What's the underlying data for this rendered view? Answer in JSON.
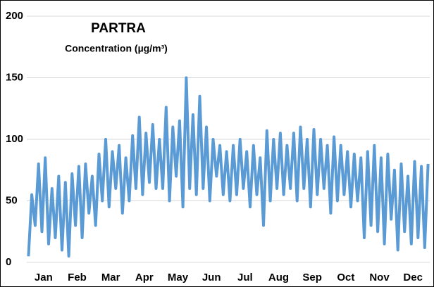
{
  "chart_data": {
    "type": "line",
    "title": "PARTRA",
    "subtitle": "Concentration (µg/m³)",
    "categories": [
      "Jan",
      "Feb",
      "Mar",
      "Apr",
      "May",
      "Jun",
      "Jul",
      "Aug",
      "Sep",
      "Oct",
      "Nov",
      "Dec"
    ],
    "series": [
      {
        "color": "#5b9bd5",
        "values": [
          [
            5,
            55,
            30,
            80,
            25,
            85,
            15,
            60,
            20,
            70
          ],
          [
            10,
            65,
            5,
            72,
            30,
            78,
            20,
            80,
            40,
            70
          ],
          [
            30,
            88,
            50,
            100,
            45,
            90,
            60,
            95,
            40,
            85
          ],
          [
            50,
            103,
            60,
            118,
            55,
            105,
            65,
            112,
            60,
            100
          ],
          [
            60,
            126,
            50,
            110,
            70,
            115,
            45,
            150,
            60,
            120
          ],
          [
            55,
            135,
            60,
            110,
            50,
            100,
            70,
            95,
            55,
            90
          ],
          [
            50,
            95,
            55,
            100,
            60,
            90,
            45,
            95,
            55,
            85
          ],
          [
            30,
            107,
            50,
            100,
            60,
            105,
            55,
            95,
            60,
            105
          ],
          [
            50,
            110,
            60,
            100,
            45,
            108,
            55,
            100,
            60,
            95
          ],
          [
            40,
            102,
            50,
            95,
            55,
            90,
            45,
            88,
            50,
            85
          ],
          [
            20,
            90,
            30,
            95,
            25,
            85,
            15,
            88,
            35,
            75
          ],
          [
            10,
            80,
            25,
            70,
            15,
            82,
            20,
            78,
            12,
            80
          ]
        ]
      }
    ],
    "ylim": [
      0,
      200
    ],
    "yticks": [
      0,
      50,
      100,
      150,
      200
    ],
    "grid": true
  }
}
